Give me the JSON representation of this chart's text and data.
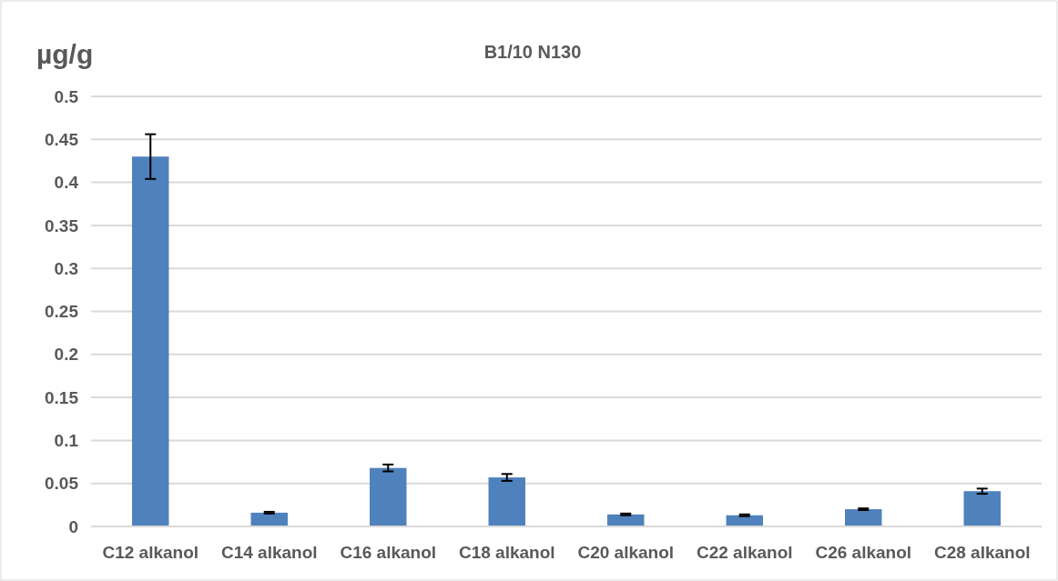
{
  "chart_data": {
    "type": "bar",
    "title": "B1/10 N130",
    "ylabel": "µg/g",
    "categories": [
      "C12 alkanol",
      "C14 alkanol",
      "C16 alkanol",
      "C18 alkanol",
      "C20 alkanol",
      "C22 alkanol",
      "C26 alkanol",
      "C28 alkanol"
    ],
    "values": [
      0.43,
      0.016,
      0.068,
      0.057,
      0.014,
      0.013,
      0.02,
      0.041
    ],
    "errors": [
      0.026,
      0.001,
      0.004,
      0.004,
      0.001,
      0.001,
      0.001,
      0.003
    ],
    "color": "#4f81bd",
    "ylim": [
      0,
      0.5
    ],
    "yticks": [
      0,
      0.05,
      0.1,
      0.15,
      0.2,
      0.25,
      0.3,
      0.35,
      0.4,
      0.45,
      0.5
    ],
    "grid": true
  }
}
